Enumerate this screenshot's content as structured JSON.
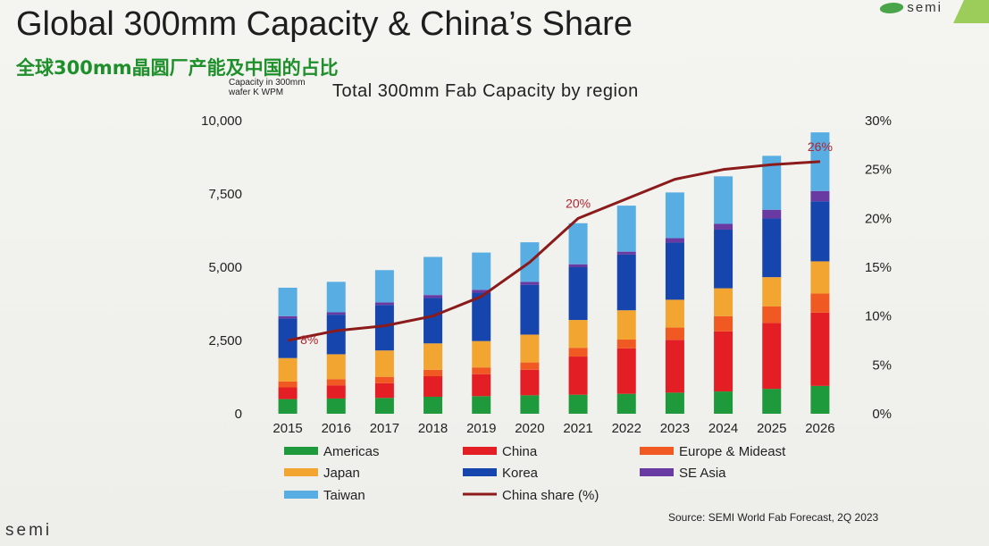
{
  "header": {
    "title": "Global 300mm Capacity & China’s Share",
    "subtitle": "全球300mm晶圆厂产能及中国的占比",
    "logo_text": "semi"
  },
  "footer": {
    "source": "Source:  SEMI World Fab Forecast, 2Q 2023",
    "logo_text": "semi"
  },
  "chart_data": {
    "type": "bar",
    "stacked": true,
    "title": "Total 300mm Fab Capacity by region",
    "ylabel_lines": [
      "Capacity in 300mm",
      "wafer K WPM"
    ],
    "categories": [
      "2015",
      "2016",
      "2017",
      "2018",
      "2019",
      "2020",
      "2021",
      "2022",
      "2023",
      "2024",
      "2025",
      "2026"
    ],
    "ylim": [
      0,
      10000
    ],
    "yticks": [
      "0",
      "2,500",
      "5,000",
      "7,500",
      "10,000"
    ],
    "y2lim": [
      0,
      30
    ],
    "y2ticks": [
      "0%",
      "5%",
      "10%",
      "15%",
      "20%",
      "25%",
      "30%"
    ],
    "series": [
      {
        "name": "Americas",
        "color": "#1e9a3c",
        "values": [
          500,
          520,
          540,
          580,
          600,
          630,
          650,
          680,
          720,
          760,
          850,
          950
        ]
      },
      {
        "name": "China",
        "color": "#e31e24",
        "values": [
          400,
          450,
          500,
          700,
          750,
          870,
          1300,
          1550,
          1800,
          2050,
          2250,
          2500
        ]
      },
      {
        "name": "Europe & Mideast",
        "color": "#f05a22",
        "values": [
          200,
          210,
          220,
          220,
          230,
          250,
          300,
          300,
          420,
          520,
          560,
          650
        ]
      },
      {
        "name": "Japan",
        "color": "#f2a531",
        "values": [
          800,
          850,
          900,
          900,
          900,
          950,
          950,
          1000,
          950,
          950,
          1000,
          1100
        ]
      },
      {
        "name": "Korea",
        "color": "#1646ad",
        "values": [
          1350,
          1350,
          1550,
          1550,
          1650,
          1700,
          1800,
          1900,
          1950,
          2000,
          2000,
          2050
        ]
      },
      {
        "name": "SE Asia",
        "color": "#6a3aa3",
        "values": [
          80,
          80,
          90,
          100,
          100,
          100,
          100,
          100,
          150,
          200,
          300,
          350
        ]
      },
      {
        "name": "Taiwan",
        "color": "#58aee3",
        "values": [
          970,
          1040,
          1100,
          1300,
          1270,
          1350,
          1400,
          1570,
          1560,
          1620,
          1840,
          2000
        ]
      }
    ],
    "line": {
      "name": "China share (%)",
      "color": "#8b1a1a",
      "values": [
        7.5,
        8.5,
        9,
        10,
        12,
        15.5,
        20,
        22,
        24,
        25,
        25.5,
        25.8
      ]
    },
    "annotations": [
      {
        "index": 0,
        "text": "8%"
      },
      {
        "index": 6,
        "text": "20%"
      },
      {
        "index": 11,
        "text": "26%"
      }
    ],
    "legend_position": "bottom"
  }
}
